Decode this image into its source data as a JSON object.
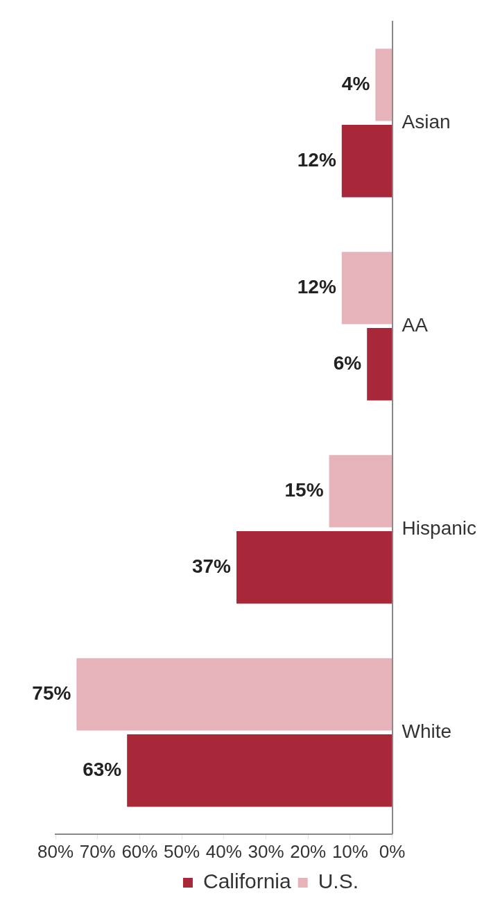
{
  "chart_data": {
    "type": "bar",
    "orientation": "horizontal",
    "categories": [
      "Asian",
      "AA",
      "Hispanic",
      "White"
    ],
    "series": [
      {
        "name": "U.S.",
        "color": "#e6b3bb",
        "values": [
          4,
          12,
          15,
          75
        ]
      },
      {
        "name": "California",
        "color": "#a8283a",
        "values": [
          12,
          6,
          37,
          63
        ]
      }
    ],
    "xlim": [
      80,
      0
    ],
    "xticks": [
      {
        "value": 0,
        "label": "0%"
      },
      {
        "value": 10,
        "label": "10%"
      },
      {
        "value": 20,
        "label": "20%"
      },
      {
        "value": 30,
        "label": "30%"
      },
      {
        "value": 40,
        "label": "40%"
      },
      {
        "value": 50,
        "label": "50%"
      },
      {
        "value": 60,
        "label": "60%"
      },
      {
        "value": 70,
        "label": "70%"
      },
      {
        "value": 80,
        "label": "80%"
      }
    ],
    "value_labels": [
      [
        "4%",
        "12%",
        "15%",
        "75%"
      ],
      [
        "12%",
        "6%",
        "37%",
        "63%"
      ]
    ],
    "grid": false,
    "legend": "bottom"
  }
}
